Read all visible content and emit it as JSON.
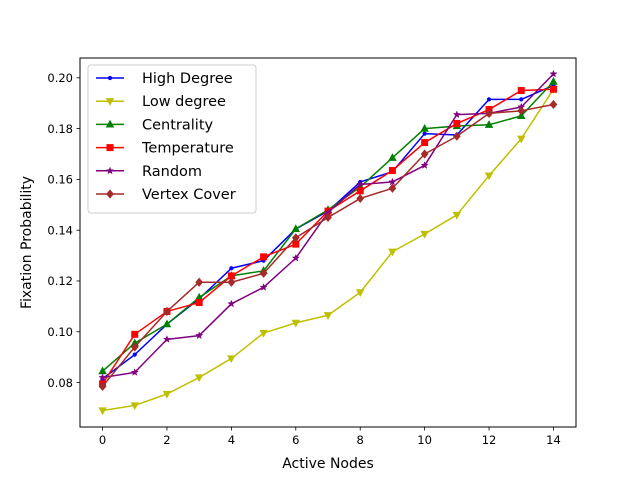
{
  "chart_data": {
    "type": "line",
    "title": "",
    "xlabel": "Active Nodes",
    "ylabel": "Fixation Probability",
    "xlim": [
      -0.7,
      14.7
    ],
    "ylim": [
      0.0625,
      0.2078
    ],
    "x": [
      0,
      1,
      2,
      3,
      4,
      5,
      6,
      7,
      8,
      9,
      10,
      11,
      12,
      13,
      14
    ],
    "xticks": [
      0,
      2,
      4,
      6,
      8,
      10,
      12,
      14
    ],
    "xtick_labels": [
      "0",
      "2",
      "4",
      "6",
      "8",
      "10",
      "12",
      "14"
    ],
    "yticks": [
      0.08,
      0.1,
      0.12,
      0.14,
      0.16,
      0.18,
      0.2
    ],
    "ytick_labels": [
      "0.08",
      "0.10",
      "0.12",
      "0.14",
      "0.16",
      "0.18",
      "0.20"
    ],
    "grid": false,
    "legend": "upper-left",
    "series": [
      {
        "name": "High Degree",
        "color": "#0000ff",
        "marker": "point",
        "values": [
          0.0815,
          0.091,
          0.103,
          0.113,
          0.125,
          0.128,
          0.1405,
          0.1475,
          0.159,
          0.163,
          0.178,
          0.1775,
          0.1915,
          0.1915,
          0.197
        ]
      },
      {
        "name": "Low degree",
        "color": "#bfbf00",
        "marker": "triangle-down",
        "values": [
          0.069,
          0.071,
          0.0755,
          0.082,
          0.0895,
          0.0995,
          0.1035,
          0.1065,
          0.1155,
          0.1315,
          0.1385,
          0.146,
          0.1615,
          0.176,
          0.1955
        ]
      },
      {
        "name": "Centrality",
        "color": "#008000",
        "marker": "triangle-up",
        "values": [
          0.0845,
          0.0955,
          0.103,
          0.1135,
          0.122,
          0.124,
          0.1405,
          0.148,
          0.157,
          0.1685,
          0.18,
          0.181,
          0.1815,
          0.185,
          0.1985
        ]
      },
      {
        "name": "Temperature",
        "color": "#ff0000",
        "marker": "square",
        "values": [
          0.0795,
          0.099,
          0.108,
          0.1115,
          0.122,
          0.1295,
          0.1345,
          0.1475,
          0.1555,
          0.1635,
          0.1745,
          0.182,
          0.1875,
          0.195,
          0.1955
        ]
      },
      {
        "name": "Random",
        "color": "#800080",
        "marker": "star",
        "values": [
          0.082,
          0.084,
          0.097,
          0.0985,
          0.111,
          0.1175,
          0.129,
          0.147,
          0.158,
          0.159,
          0.1655,
          0.1855,
          0.186,
          0.1885,
          0.2015
        ]
      },
      {
        "name": "Vertex Cover",
        "color": "#a52a2a",
        "marker": "diamond",
        "values": [
          0.0785,
          0.094,
          0.108,
          0.1195,
          0.1195,
          0.123,
          0.137,
          0.145,
          0.1525,
          0.1565,
          0.17,
          0.177,
          0.186,
          0.187,
          0.1895
        ]
      }
    ]
  }
}
